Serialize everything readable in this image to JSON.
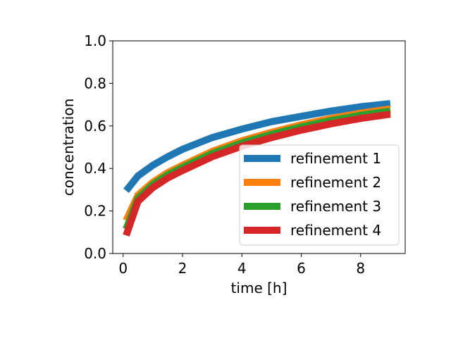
{
  "chart_data": {
    "type": "line",
    "title": "",
    "xlabel": "time [h]",
    "ylabel": "concentration",
    "xlim": [
      -0.35,
      9.5
    ],
    "ylim": [
      0.0,
      1.0
    ],
    "xticks": [
      0,
      2,
      4,
      6,
      8
    ],
    "yticks": [
      0.0,
      0.2,
      0.4,
      0.6,
      0.8,
      1.0
    ],
    "xtick_labels": [
      "0",
      "2",
      "4",
      "6",
      "8"
    ],
    "ytick_labels": [
      "0.0",
      "0.2",
      "0.4",
      "0.6",
      "0.8",
      "1.0"
    ],
    "grid": false,
    "legend_position": "lower-right",
    "series": [
      {
        "name": "refinement 1",
        "color": "#1f77b4",
        "x": [
          0.1,
          0.5,
          1,
          1.5,
          2,
          3,
          4,
          5,
          6,
          7,
          8,
          9
        ],
        "y": [
          0.295,
          0.365,
          0.415,
          0.455,
          0.49,
          0.545,
          0.585,
          0.62,
          0.645,
          0.67,
          0.69,
          0.705
        ]
      },
      {
        "name": "refinement 2",
        "color": "#ff7f0e",
        "x": [
          0.1,
          0.5,
          1,
          1.5,
          2,
          3,
          4,
          5,
          6,
          7,
          8,
          9
        ],
        "y": [
          0.155,
          0.275,
          0.335,
          0.38,
          0.415,
          0.48,
          0.53,
          0.57,
          0.605,
          0.635,
          0.66,
          0.68
        ]
      },
      {
        "name": "refinement 3",
        "color": "#2ca02c",
        "x": [
          0.1,
          0.5,
          1,
          1.5,
          2,
          3,
          4,
          5,
          6,
          7,
          8,
          9
        ],
        "y": [
          0.115,
          0.26,
          0.325,
          0.37,
          0.405,
          0.47,
          0.52,
          0.56,
          0.595,
          0.625,
          0.65,
          0.67
        ]
      },
      {
        "name": "refinement 4",
        "color": "#d62728",
        "x": [
          0.1,
          0.5,
          1,
          1.5,
          2,
          3,
          4,
          5,
          6,
          7,
          8,
          9
        ],
        "y": [
          0.085,
          0.245,
          0.31,
          0.355,
          0.39,
          0.455,
          0.505,
          0.545,
          0.58,
          0.61,
          0.635,
          0.655
        ]
      }
    ]
  }
}
